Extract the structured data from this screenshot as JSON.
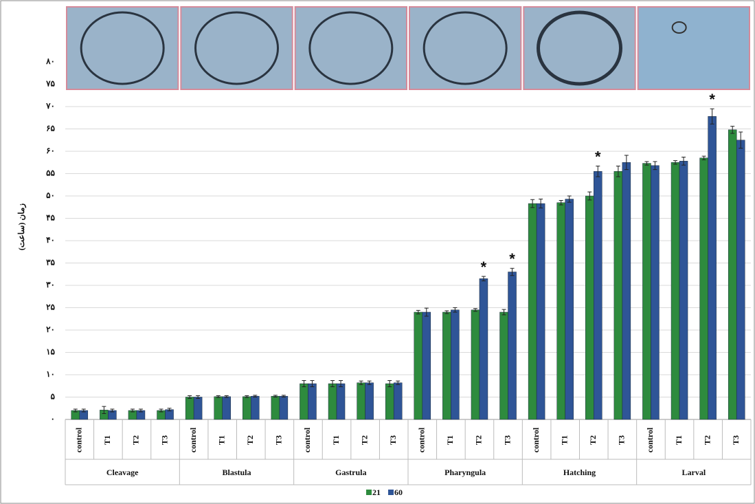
{
  "chart_data": {
    "type": "bar",
    "y_label": "زمان (ساعت)",
    "groups": [
      "Cleavage",
      "Blastula",
      "Gastrula",
      "Pharyngula",
      "Hatching",
      "Larval"
    ],
    "categories": [
      "control",
      "T1",
      "T2",
      "T3",
      "control",
      "T1",
      "T2",
      "T3",
      "control",
      "T1",
      "T2",
      "T3",
      "control",
      "T1",
      "T2",
      "T3",
      "control",
      "T1",
      "T2",
      "T3",
      "control",
      "T1",
      "T2",
      "T3"
    ],
    "series": [
      {
        "name": "21",
        "color": "#2e8b3e",
        "values": [
          2,
          2.1,
          2,
          2,
          5,
          5.1,
          5.1,
          5.2,
          8,
          8,
          8.2,
          8,
          24,
          24,
          24.5,
          24,
          48.3,
          48.5,
          50,
          55.5,
          57.3,
          57.5,
          58.5,
          64.8
        ],
        "errors": [
          0.3,
          0.8,
          0.3,
          0.3,
          0.3,
          0.2,
          0.2,
          0.2,
          0.7,
          0.7,
          0.4,
          0.7,
          0.4,
          0.3,
          0.3,
          0.6,
          0.9,
          0.5,
          0.9,
          1.2,
          0.4,
          0.4,
          0.4,
          0.8
        ]
      },
      {
        "name": "60",
        "color": "#2f5597",
        "values": [
          2,
          2,
          2,
          2.2,
          5,
          5.1,
          5.2,
          5.2,
          8,
          8,
          8.2,
          8.2,
          24,
          24.5,
          31.5,
          33,
          48.3,
          49.3,
          55.5,
          57.5,
          56.8,
          57.8,
          67.8,
          62.5
        ],
        "errors": [
          0.3,
          0.3,
          0.3,
          0.3,
          0.3,
          0.2,
          0.2,
          0.2,
          0.7,
          0.7,
          0.4,
          0.4,
          0.9,
          0.5,
          0.5,
          0.8,
          1.0,
          0.7,
          1.2,
          1.6,
          0.9,
          0.9,
          1.7,
          1.8
        ],
        "value_notes": [
          null,
          null,
          null,
          null,
          null,
          null,
          null,
          null,
          null,
          null,
          null,
          null,
          null,
          null,
          "*",
          "*",
          null,
          null,
          "*",
          null,
          null,
          null,
          "*",
          null
        ]
      }
    ],
    "ylim": [
      0,
      80
    ],
    "yticks": [
      {
        "value": 0,
        "label": "۰"
      },
      {
        "value": 5,
        "label": "۵"
      },
      {
        "value": 10,
        "label": "۱۰"
      },
      {
        "value": 15,
        "label": "۱۵"
      },
      {
        "value": 20,
        "label": "۲۰"
      },
      {
        "value": 25,
        "label": "۲۵"
      },
      {
        "value": 30,
        "label": "۳۰"
      },
      {
        "value": 35,
        "label": "۳۵"
      },
      {
        "value": 40,
        "label": "۴۰"
      },
      {
        "value": 45,
        "label": "۴۵"
      },
      {
        "value": 50,
        "label": "۵۰"
      },
      {
        "value": 55,
        "label": "۵۵"
      },
      {
        "value": 60,
        "label": "۶۰"
      },
      {
        "value": 65,
        "label": "۶۵"
      },
      {
        "value": 70,
        "label": "۷۰"
      },
      {
        "value": 75,
        "label": "۷۵"
      },
      {
        "value": 80,
        "label": "۸۰"
      }
    ],
    "grid": true,
    "legend": "bottom"
  }
}
